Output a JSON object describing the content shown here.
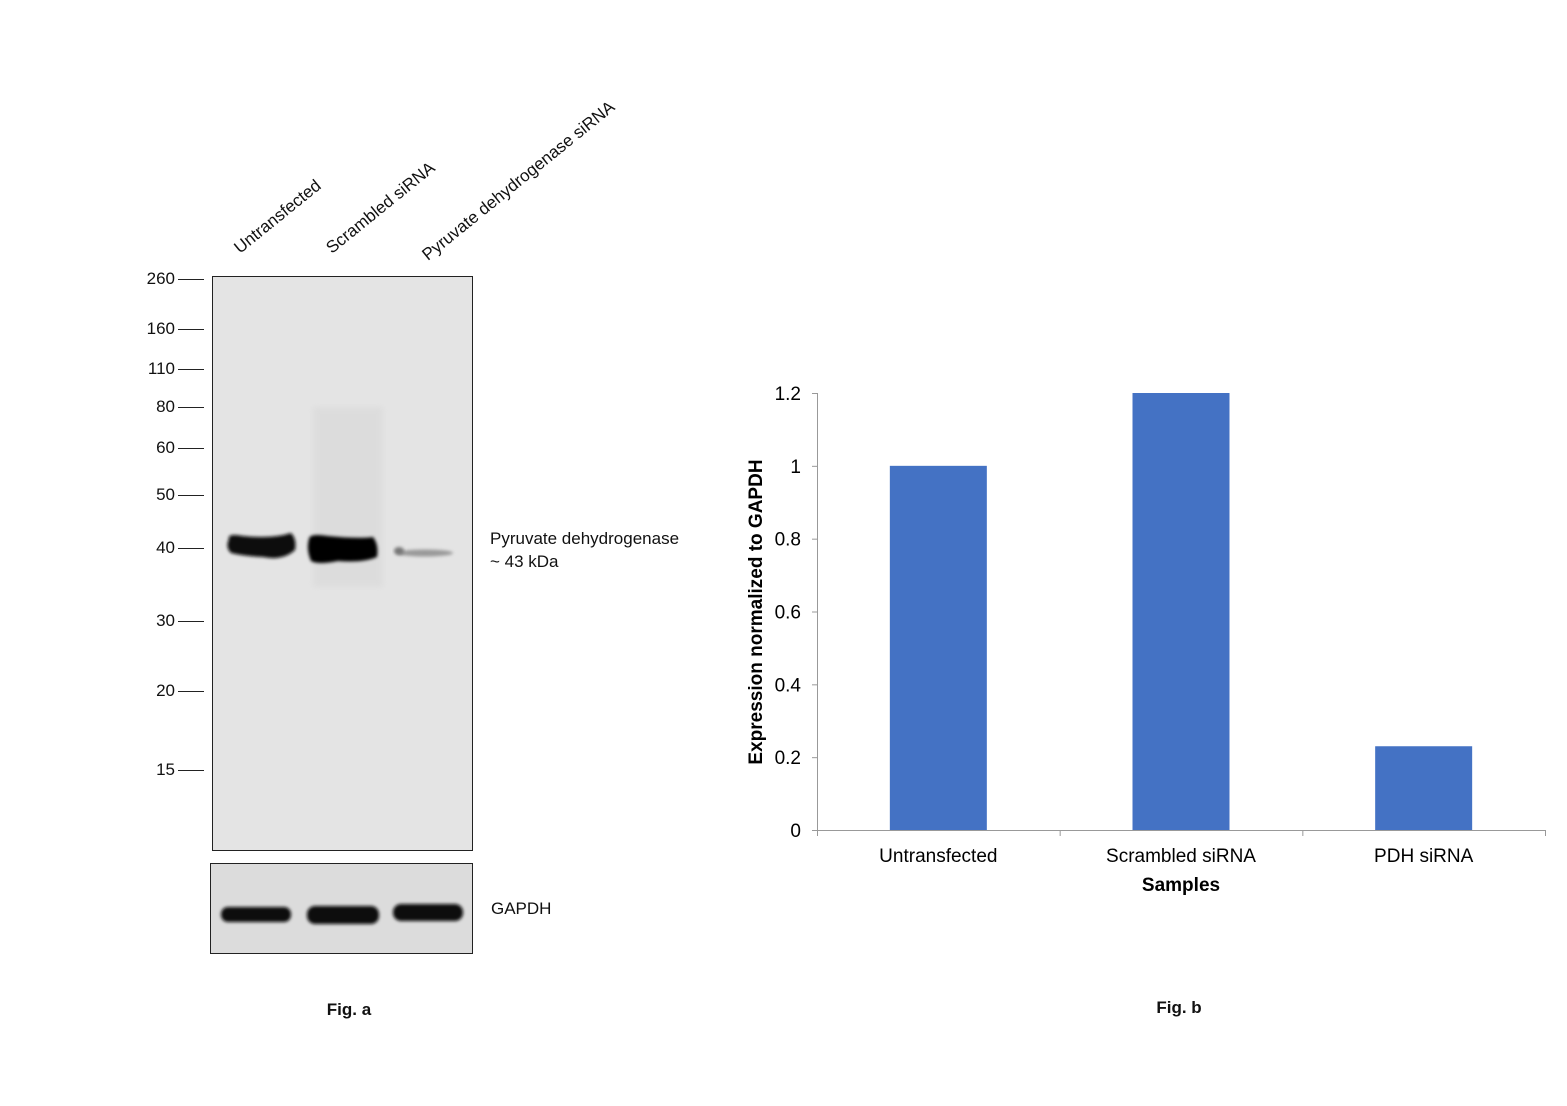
{
  "fig_a": {
    "caption": "Fig. a",
    "lanes": [
      "Untransfected",
      "Scrambled siRNA",
      "Pyruvate dehydrogenase siRNA"
    ],
    "markers": [
      "260",
      "160",
      "110",
      "80",
      "60",
      "50",
      "40",
      "30",
      "20",
      "15"
    ],
    "target_label": "Pyruvate dehydrogenase",
    "target_size": "~ 43 kDa",
    "loading_control": "GAPDH"
  },
  "fig_b": {
    "caption": "Fig. b"
  },
  "chart_data": {
    "type": "bar",
    "categories": [
      "Untransfected",
      "Scrambled siRNA",
      "PDH siRNA"
    ],
    "values": [
      1.0,
      1.2,
      0.23
    ],
    "xlabel": "Samples",
    "ylabel": "Expression normalized to GAPDH",
    "ylim": [
      0,
      1.2
    ],
    "yticks": [
      "0",
      "0.2",
      "0.4",
      "0.6",
      "0.8",
      "1",
      "1.2"
    ],
    "grid": false,
    "bar_color": "#4472C4"
  }
}
